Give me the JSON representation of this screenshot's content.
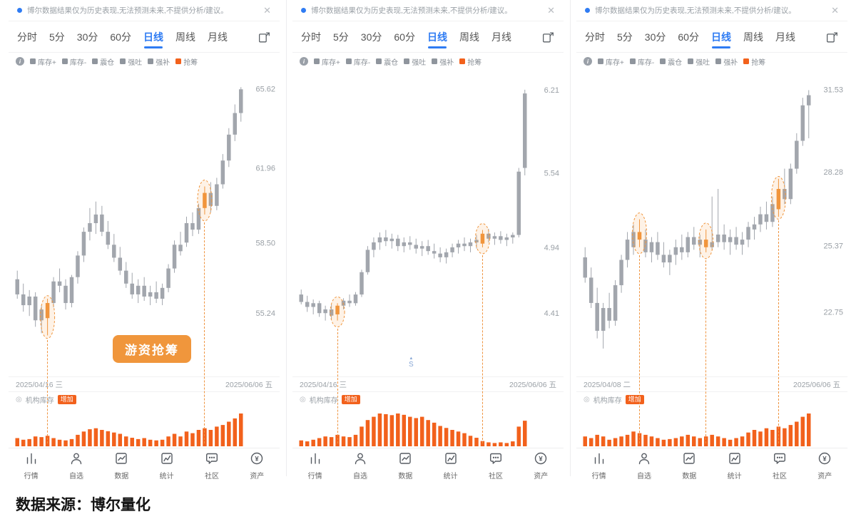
{
  "colors": {
    "accent_blue": "#2f7cf3",
    "candle_gray": "#a2a6ad",
    "orange": "#f2611c",
    "mark_orange": "#f0953c",
    "badge_orange": "#f0963c",
    "text_gray": "#9aa0a6"
  },
  "shared": {
    "disclaimer": "博尔数据结果仅为历史表现,无法预测未来,不提供分析/建议。",
    "close_glyph": "✕",
    "info_glyph": "i",
    "tabs": [
      {
        "label": "分时"
      },
      {
        "label": "5分"
      },
      {
        "label": "30分"
      },
      {
        "label": "60分"
      },
      {
        "label": "日线"
      },
      {
        "label": "周线"
      },
      {
        "label": "月线"
      }
    ],
    "legend": [
      {
        "label": "库存+",
        "color": "#8f959d"
      },
      {
        "label": "库存-",
        "color": "#8f959d"
      },
      {
        "label": "震仓",
        "color": "#8f959d"
      },
      {
        "label": "强吐",
        "color": "#8f959d"
      },
      {
        "label": "强补",
        "color": "#8f959d"
      },
      {
        "label": "抢筹",
        "color": "#f2611c"
      }
    ],
    "subchart": {
      "icon": "◎",
      "label": "机构库存",
      "badge": "增加"
    },
    "nav": [
      {
        "label": "行情"
      },
      {
        "label": "自选"
      },
      {
        "label": "数据"
      },
      {
        "label": "统计"
      },
      {
        "label": "社区"
      },
      {
        "label": "资产",
        "icon_char": "¥"
      }
    ]
  },
  "panels": [
    {
      "y_labels": [
        65.62,
        61.96,
        58.5,
        55.24
      ],
      "ylim": [
        52.3,
        66.5
      ],
      "date_start": "2025/04/16 三",
      "date_end": "2025/06/06 五",
      "badge_label": "游资抢筹",
      "marks": [
        5,
        31
      ],
      "candles": [
        [
          56.8,
          57.2,
          55.9,
          56.1
        ],
        [
          56.1,
          56.6,
          55.3,
          55.6
        ],
        [
          55.6,
          56.3,
          55.1,
          56.0
        ],
        [
          56.0,
          56.2,
          54.6,
          54.9
        ],
        [
          54.9,
          55.6,
          54.3,
          55.4
        ],
        [
          55.0,
          55.9,
          54.2,
          55.7
        ],
        [
          55.7,
          56.9,
          55.5,
          56.7
        ],
        [
          56.7,
          57.3,
          56.2,
          56.5
        ],
        [
          56.5,
          56.8,
          55.4,
          55.7
        ],
        [
          55.7,
          57.0,
          55.5,
          56.9
        ],
        [
          56.9,
          58.1,
          56.6,
          57.9
        ],
        [
          57.9,
          59.2,
          57.6,
          59.0
        ],
        [
          59.0,
          60.1,
          58.6,
          59.4
        ],
        [
          59.4,
          60.4,
          58.9,
          59.8
        ],
        [
          59.8,
          60.2,
          58.8,
          59.0
        ],
        [
          59.0,
          59.5,
          58.2,
          58.4
        ],
        [
          58.4,
          58.9,
          57.6,
          57.8
        ],
        [
          57.8,
          58.3,
          57.0,
          57.2
        ],
        [
          57.2,
          57.6,
          56.4,
          56.6
        ],
        [
          56.6,
          57.1,
          55.9,
          56.1
        ],
        [
          56.1,
          56.8,
          55.7,
          56.5
        ],
        [
          56.5,
          56.9,
          55.8,
          56.0
        ],
        [
          56.0,
          56.5,
          55.6,
          56.2
        ],
        [
          56.2,
          56.7,
          55.7,
          55.9
        ],
        [
          55.9,
          56.6,
          55.6,
          56.4
        ],
        [
          56.4,
          57.5,
          56.2,
          57.3
        ],
        [
          57.3,
          58.6,
          57.1,
          58.4
        ],
        [
          58.4,
          59.0,
          57.9,
          58.1
        ],
        [
          58.5,
          59.7,
          58.3,
          59.4
        ],
        [
          59.4,
          59.9,
          58.8,
          59.1
        ],
        [
          59.1,
          60.3,
          58.9,
          60.1
        ],
        [
          60.1,
          61.1,
          59.8,
          60.8
        ],
        [
          60.8,
          61.3,
          59.9,
          60.2
        ],
        [
          60.2,
          61.5,
          60.0,
          61.2
        ],
        [
          61.2,
          62.6,
          61.0,
          62.3
        ],
        [
          62.3,
          63.8,
          62.0,
          63.5
        ],
        [
          63.5,
          64.9,
          63.2,
          64.5
        ],
        [
          64.5,
          65.7,
          64.1,
          65.6
        ]
      ],
      "volumes": [
        0.25,
        0.2,
        0.22,
        0.3,
        0.28,
        0.32,
        0.25,
        0.2,
        0.18,
        0.22,
        0.35,
        0.45,
        0.52,
        0.55,
        0.5,
        0.46,
        0.42,
        0.38,
        0.3,
        0.26,
        0.22,
        0.25,
        0.2,
        0.18,
        0.2,
        0.3,
        0.38,
        0.3,
        0.45,
        0.4,
        0.5,
        0.55,
        0.5,
        0.6,
        0.65,
        0.75,
        0.85,
        1.0
      ]
    },
    {
      "y_labels": [
        6.21,
        5.54,
        4.94,
        4.41
      ],
      "ylim": [
        3.9,
        6.37
      ],
      "date_start": "2025/04/16 三",
      "date_end": "2025/06/06 五",
      "marker_arrow": "▲",
      "marker_label": "S",
      "marks": [
        6,
        30
      ],
      "candles": [
        [
          4.56,
          4.6,
          4.48,
          4.5
        ],
        [
          4.5,
          4.55,
          4.42,
          4.46
        ],
        [
          4.46,
          4.52,
          4.4,
          4.49
        ],
        [
          4.49,
          4.51,
          4.38,
          4.41
        ],
        [
          4.41,
          4.47,
          4.35,
          4.44
        ],
        [
          4.44,
          4.48,
          4.36,
          4.39
        ],
        [
          4.4,
          4.49,
          4.35,
          4.47
        ],
        [
          4.47,
          4.53,
          4.44,
          4.51
        ],
        [
          4.51,
          4.56,
          4.46,
          4.49
        ],
        [
          4.49,
          4.58,
          4.47,
          4.56
        ],
        [
          4.56,
          4.76,
          4.54,
          4.74
        ],
        [
          4.74,
          4.95,
          4.72,
          4.92
        ],
        [
          4.92,
          5.02,
          4.86,
          4.98
        ],
        [
          4.98,
          5.06,
          4.92,
          5.02
        ],
        [
          5.02,
          5.08,
          4.95,
          4.99
        ],
        [
          4.99,
          5.05,
          4.93,
          5.01
        ],
        [
          5.01,
          5.04,
          4.91,
          4.95
        ],
        [
          4.95,
          5.02,
          4.9,
          4.98
        ],
        [
          4.98,
          5.03,
          4.92,
          4.96
        ],
        [
          4.96,
          5.01,
          4.89,
          4.93
        ],
        [
          4.93,
          4.99,
          4.87,
          4.95
        ],
        [
          4.95,
          5.0,
          4.88,
          4.91
        ],
        [
          4.91,
          4.97,
          4.85,
          4.89
        ],
        [
          4.89,
          4.94,
          4.82,
          4.86
        ],
        [
          4.86,
          4.93,
          4.81,
          4.9
        ],
        [
          4.9,
          4.97,
          4.86,
          4.94
        ],
        [
          4.94,
          5.0,
          4.89,
          4.97
        ],
        [
          4.97,
          5.02,
          4.91,
          4.95
        ],
        [
          4.95,
          5.01,
          4.9,
          4.98
        ],
        [
          4.98,
          5.04,
          4.93,
          5.0
        ],
        [
          4.97,
          5.08,
          4.94,
          5.05
        ],
        [
          5.05,
          5.09,
          4.98,
          5.01
        ],
        [
          5.01,
          5.06,
          4.96,
          5.03
        ],
        [
          5.03,
          5.07,
          4.97,
          5.0
        ],
        [
          5.0,
          5.05,
          4.95,
          5.02
        ],
        [
          5.02,
          5.06,
          4.97,
          5.04
        ],
        [
          5.04,
          5.58,
          5.02,
          5.55
        ],
        [
          5.58,
          6.21,
          5.52,
          6.18
        ]
      ],
      "volumes": [
        0.18,
        0.15,
        0.2,
        0.25,
        0.3,
        0.28,
        0.35,
        0.3,
        0.28,
        0.35,
        0.6,
        0.8,
        0.9,
        1.0,
        0.98,
        0.95,
        1.0,
        0.96,
        0.9,
        0.86,
        0.9,
        0.8,
        0.72,
        0.62,
        0.56,
        0.5,
        0.45,
        0.4,
        0.32,
        0.26,
        0.16,
        0.12,
        0.1,
        0.12,
        0.1,
        0.15,
        0.6,
        0.78
      ]
    },
    {
      "y_labels": [
        31.53,
        28.28,
        25.37,
        22.75
      ],
      "ylim": [
        20.2,
        32.3
      ],
      "date_start": "2025/04/08 二",
      "date_end": "2025/06/06 五",
      "marks": [
        9,
        20,
        32
      ],
      "candles": [
        [
          24.9,
          25.3,
          23.9,
          24.1
        ],
        [
          24.1,
          24.5,
          22.9,
          23.1
        ],
        [
          23.1,
          23.7,
          21.7,
          22.0
        ],
        [
          22.0,
          23.1,
          21.3,
          22.9
        ],
        [
          22.9,
          23.5,
          22.1,
          22.4
        ],
        [
          22.4,
          24.0,
          22.2,
          23.8
        ],
        [
          23.8,
          25.0,
          23.5,
          24.8
        ],
        [
          24.8,
          25.9,
          24.5,
          25.6
        ],
        [
          25.3,
          26.2,
          25.0,
          25.9
        ],
        [
          25.9,
          26.4,
          25.3,
          25.6
        ],
        [
          25.6,
          26.0,
          24.9,
          25.1
        ],
        [
          25.1,
          25.7,
          24.7,
          25.5
        ],
        [
          25.5,
          25.9,
          24.8,
          25.0
        ],
        [
          25.0,
          25.5,
          24.5,
          24.7
        ],
        [
          24.7,
          25.2,
          24.2,
          25.0
        ],
        [
          25.0,
          25.6,
          24.6,
          25.3
        ],
        [
          25.3,
          25.8,
          24.8,
          25.1
        ],
        [
          25.1,
          25.9,
          24.9,
          25.7
        ],
        [
          25.7,
          26.1,
          25.2,
          25.4
        ],
        [
          25.4,
          25.8,
          24.9,
          25.6
        ],
        [
          25.6,
          26.0,
          25.1,
          25.3
        ],
        [
          25.3,
          27.3,
          25.2,
          25.5
        ],
        [
          25.5,
          27.6,
          25.3,
          25.8
        ],
        [
          25.8,
          26.2,
          25.2,
          25.5
        ],
        [
          25.5,
          26.0,
          25.0,
          25.7
        ],
        [
          25.7,
          26.1,
          25.2,
          25.4
        ],
        [
          25.4,
          25.9,
          25.0,
          25.6
        ],
        [
          25.6,
          26.3,
          25.3,
          26.1
        ],
        [
          26.0,
          26.5,
          25.6,
          26.2
        ],
        [
          26.2,
          26.9,
          25.9,
          26.6
        ],
        [
          26.6,
          27.1,
          26.0,
          26.3
        ],
        [
          26.3,
          27.3,
          26.1,
          27.0
        ],
        [
          26.8,
          28.0,
          26.5,
          27.6
        ],
        [
          27.6,
          28.4,
          27.0,
          27.2
        ],
        [
          27.2,
          28.6,
          27.0,
          28.4
        ],
        [
          28.4,
          29.8,
          28.2,
          29.5
        ],
        [
          29.5,
          31.2,
          29.3,
          30.9
        ],
        [
          30.9,
          31.5,
          29.6,
          31.3
        ]
      ],
      "volumes": [
        0.3,
        0.25,
        0.35,
        0.3,
        0.2,
        0.25,
        0.3,
        0.35,
        0.45,
        0.4,
        0.35,
        0.3,
        0.25,
        0.2,
        0.22,
        0.25,
        0.3,
        0.35,
        0.3,
        0.25,
        0.3,
        0.35,
        0.3,
        0.25,
        0.2,
        0.25,
        0.3,
        0.42,
        0.5,
        0.45,
        0.55,
        0.5,
        0.6,
        0.55,
        0.65,
        0.75,
        0.9,
        1.0
      ]
    }
  ],
  "footer": {
    "source": "数据来源：博尔量化"
  }
}
